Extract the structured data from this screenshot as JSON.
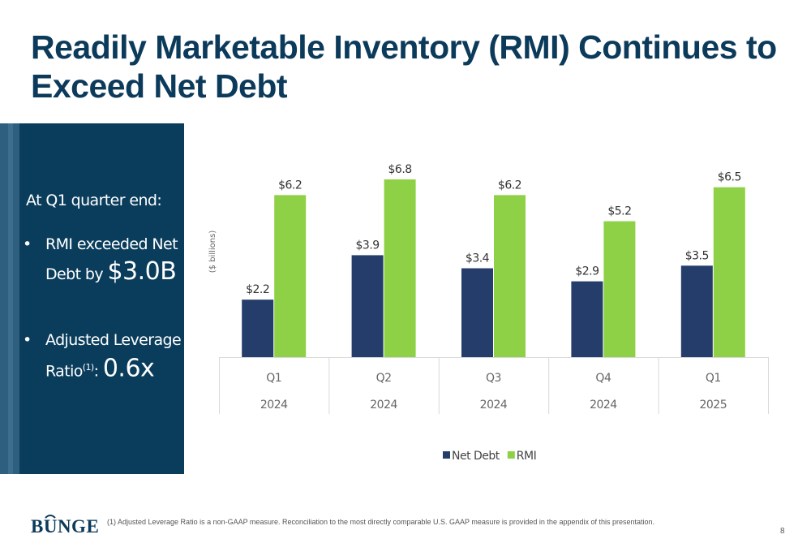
{
  "slide": {
    "title_line1": "Readily Marketable Inventory (RMI) Continues to",
    "title_line2": "Exceed Net Debt",
    "page_number": "8"
  },
  "sidebar": {
    "heading": "At Q1 quarter end:",
    "bullet1_prefix": "RMI exceeded Net Debt by",
    "bullet1_value": "$3.0B",
    "bullet2_prefix": "Adjusted Leverage Ratio",
    "bullet2_sup": "(1)",
    "bullet2_colon": ":",
    "bullet2_value": "0.6x",
    "bullet_symbol": "•"
  },
  "footer": {
    "logo_text": "BUNGE",
    "footnote": "(1)  Adjusted Leverage Ratio is a non-GAAP measure. Reconciliation to the most directly comparable U.S. GAAP measure is provided in the appendix of this presentation."
  },
  "colors": {
    "net_debt": "#253d6b",
    "rmi": "#8ed146",
    "panel": "#0a3d5c",
    "title": "#0c3a5b"
  },
  "chart_data": {
    "type": "bar",
    "categories": [
      "Q1",
      "Q2",
      "Q3",
      "Q4",
      "Q1"
    ],
    "years": [
      "2024",
      "2024",
      "2024",
      "2024",
      "2025"
    ],
    "ylabel": "($ billions)",
    "ylim": [
      0,
      7.5
    ],
    "grid": false,
    "legend_position": "bottom",
    "series": [
      {
        "name": "Net Debt",
        "values": [
          2.2,
          3.9,
          3.4,
          2.9,
          3.5
        ],
        "labels": [
          "$2.2",
          "$3.9",
          "$3.4",
          "$2.9",
          "$3.5"
        ]
      },
      {
        "name": "RMI",
        "values": [
          6.2,
          6.8,
          6.2,
          5.2,
          6.5
        ],
        "labels": [
          "$6.2",
          "$6.8",
          "$6.2",
          "$5.2",
          "$6.5"
        ]
      }
    ]
  }
}
